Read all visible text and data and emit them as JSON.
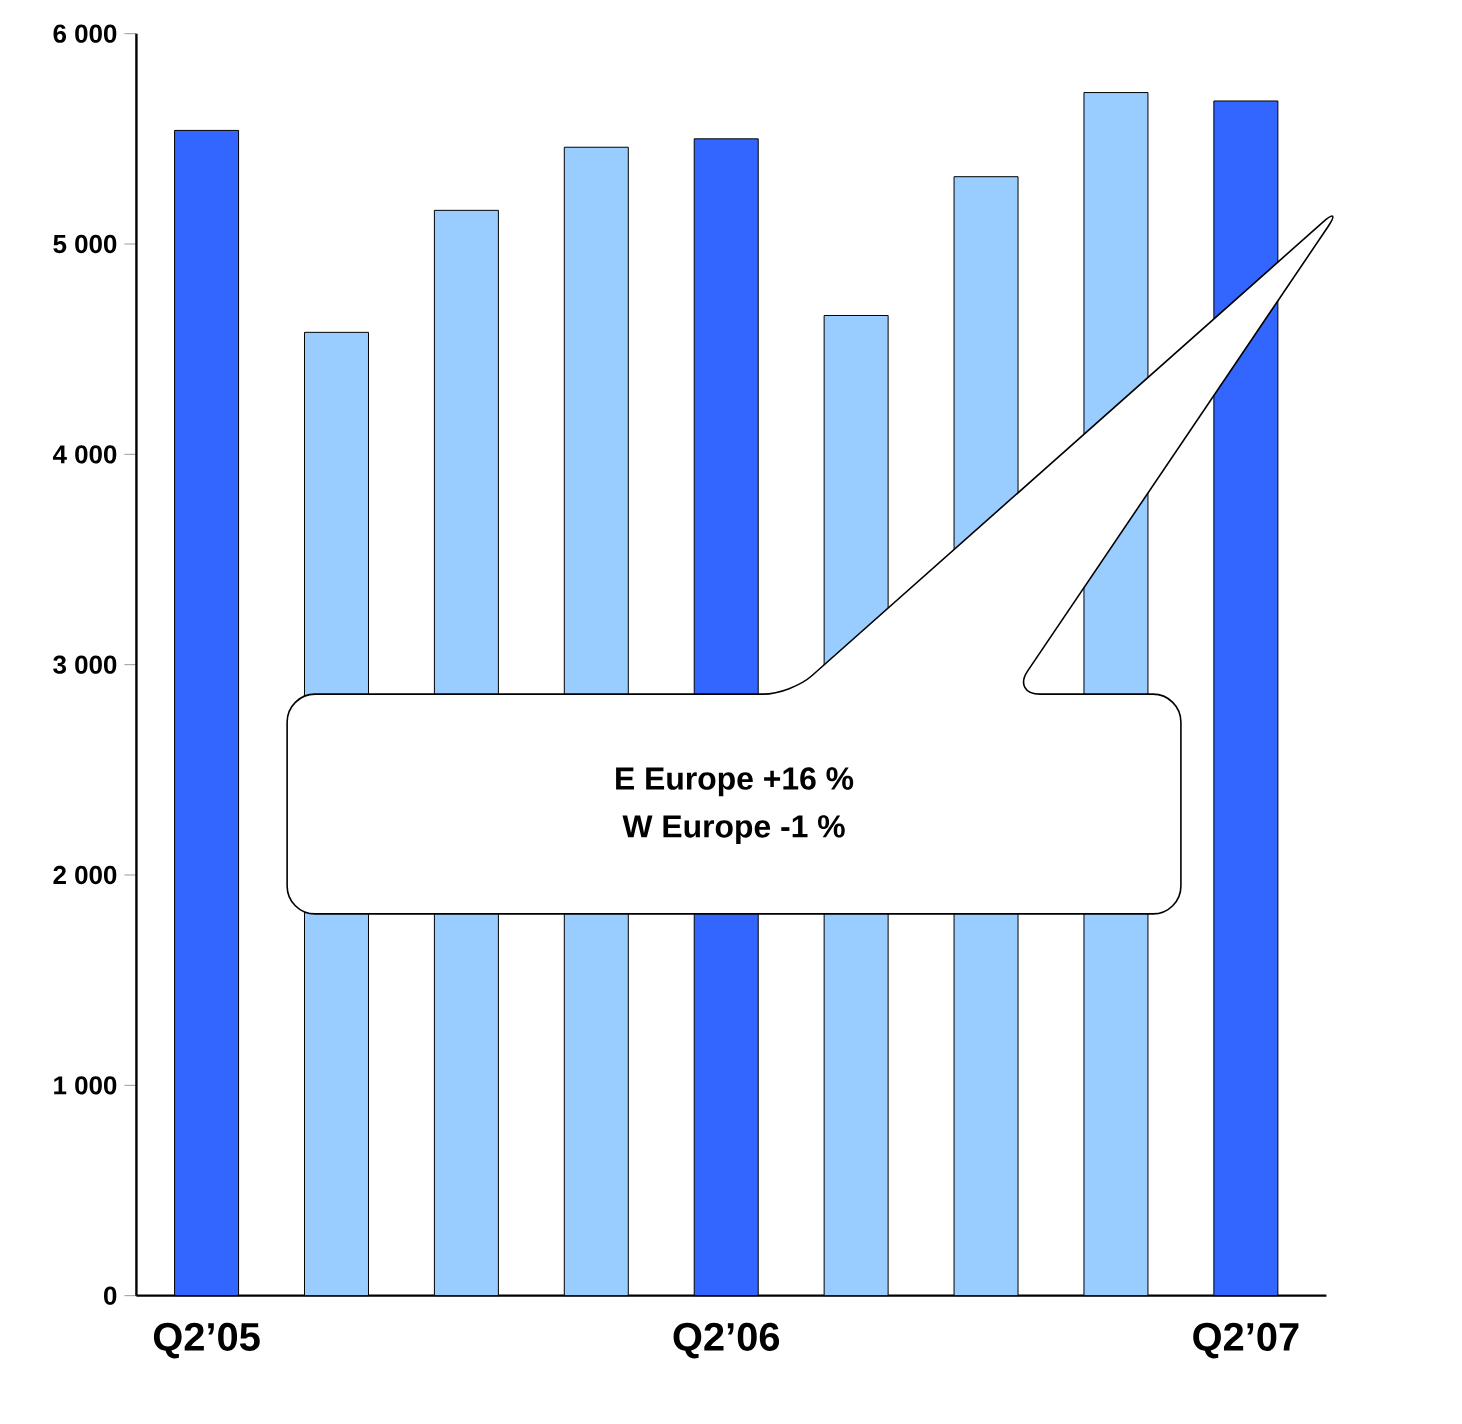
{
  "chart_data": {
    "type": "bar",
    "categories": [
      "Q2’05",
      null,
      null,
      null,
      "Q2’06",
      null,
      null,
      null,
      "Q2’07"
    ],
    "values": [
      5540,
      4580,
      5160,
      5460,
      5500,
      4660,
      5320,
      5720,
      5680
    ],
    "colors": [
      "#3366ff",
      "#99ccff",
      "#99ccff",
      "#99ccff",
      "#3366ff",
      "#99ccff",
      "#99ccff",
      "#99ccff",
      "#3366ff"
    ],
    "ylim": [
      0,
      6000
    ],
    "yticks": [
      {
        "value": 0,
        "label": "0"
      },
      {
        "value": 1000,
        "label": "1 000"
      },
      {
        "value": 2000,
        "label": "2 000"
      },
      {
        "value": 3000,
        "label": "3 000"
      },
      {
        "value": 4000,
        "label": "4 000"
      },
      {
        "value": 5000,
        "label": "5 000"
      },
      {
        "value": 6000,
        "label": "6 000"
      }
    ],
    "annotations": [
      "E Europe +16 %",
      "W Europe  -1 %"
    ],
    "grid": false
  }
}
